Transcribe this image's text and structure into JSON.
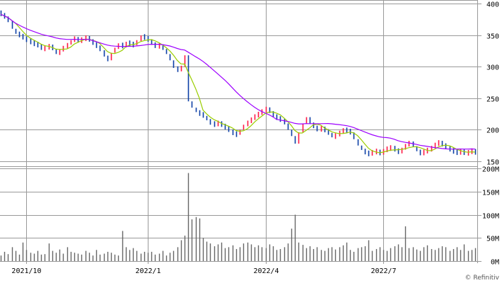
{
  "chart_data": {
    "type": "bar",
    "subtype": "price-ohlc-with-volume",
    "price_axis": {
      "ticks": [
        "400",
        "350",
        "300",
        "250",
        "200",
        "150"
      ],
      "range": [
        150,
        400
      ]
    },
    "volume_axis": {
      "ticks": [
        "200M",
        "150M",
        "100M",
        "50M",
        "0M"
      ],
      "range": [
        0,
        200
      ]
    },
    "x_ticks": [
      "2021/10",
      "2022/1",
      "2022/4",
      "2022/7"
    ],
    "x_tick_index": [
      7,
      40,
      72,
      104
    ],
    "grid": true,
    "colors": {
      "up": "#ff1744",
      "down": "#0d3fa6",
      "ma_short": "#9acd00",
      "ma_long": "#9d00ff",
      "volume": "#666666",
      "grid": "#999999"
    },
    "ma_periods": [
      5,
      25
    ],
    "close": [
      383,
      378,
      372,
      360,
      352,
      350,
      345,
      342,
      338,
      336,
      334,
      328,
      330,
      333,
      328,
      320,
      326,
      331,
      335,
      342,
      345,
      340,
      344,
      346,
      342,
      336,
      332,
      326,
      316,
      310,
      322,
      330,
      335,
      332,
      338,
      336,
      334,
      342,
      348,
      346,
      342,
      336,
      332,
      334,
      328,
      320,
      310,
      298,
      294,
      300,
      318,
      245,
      235,
      228,
      225,
      222,
      215,
      210,
      208,
      212,
      206,
      204,
      198,
      194,
      192,
      200,
      208,
      212,
      218,
      222,
      226,
      230,
      234,
      228,
      222,
      218,
      216,
      210,
      200,
      190,
      178,
      196,
      210,
      220,
      210,
      204,
      200,
      203,
      198,
      195,
      188,
      192,
      196,
      200,
      198,
      196,
      185,
      175,
      168,
      163,
      162,
      165,
      166,
      162,
      168,
      170,
      172,
      168,
      164,
      170,
      176,
      180,
      174,
      166,
      162,
      166,
      168,
      172,
      178,
      180,
      176,
      172,
      168,
      165,
      164,
      166,
      163,
      164,
      168,
      162
    ],
    "volume_m": [
      12,
      20,
      15,
      30,
      22,
      14,
      40,
      24,
      18,
      16,
      22,
      14,
      15,
      38,
      22,
      18,
      25,
      16,
      30,
      20,
      18,
      16,
      14,
      22,
      18,
      12,
      24,
      14,
      16,
      20,
      18,
      14,
      12,
      65,
      30,
      24,
      28,
      22,
      16,
      20,
      18,
      20,
      14,
      16,
      22,
      12,
      18,
      22,
      30,
      45,
      55,
      190,
      90,
      95,
      92,
      50,
      42,
      38,
      32,
      36,
      40,
      28,
      30,
      34,
      26,
      30,
      38,
      40,
      36,
      30,
      34,
      30,
      28,
      36,
      32,
      24,
      26,
      30,
      38,
      70,
      100,
      40,
      35,
      28,
      32,
      26,
      30,
      24,
      22,
      28,
      30,
      25,
      30,
      34,
      40,
      24,
      20,
      28,
      30,
      32,
      45,
      22,
      26,
      30,
      24,
      22,
      28,
      32,
      36,
      30,
      75,
      28,
      30,
      25,
      22,
      30,
      34,
      26,
      24,
      28,
      32,
      30,
      22,
      26,
      30,
      24,
      36,
      22,
      24,
      28
    ],
    "credit": "© Refinitiv"
  }
}
